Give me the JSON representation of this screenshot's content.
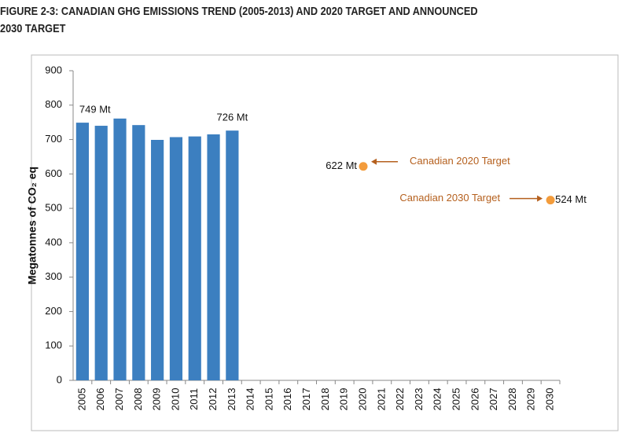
{
  "chart_data": {
    "type": "bar",
    "title": "FIGURE 2-3: CANADIAN GHG EMISSIONS TREND (2005-2013) AND 2020 TARGET AND ANNOUNCED 2030 TARGET",
    "y_label": "Megatonnes of CO₂ eq",
    "categories": [
      "2005",
      "2006",
      "2007",
      "2008",
      "2009",
      "2010",
      "2011",
      "2012",
      "2013",
      "2014",
      "2015",
      "2016",
      "2017",
      "2018",
      "2019",
      "2020",
      "2021",
      "2022",
      "2023",
      "2024",
      "2025",
      "2026",
      "2027",
      "2028",
      "2029",
      "2030"
    ],
    "series": [
      {
        "type": "bar",
        "color": "#3c7fc0",
        "values": [
          749,
          740,
          761,
          742,
          699,
          707,
          709,
          715,
          726,
          null,
          null,
          null,
          null,
          null,
          null,
          null,
          null,
          null,
          null,
          null,
          null,
          null,
          null,
          null,
          null,
          null
        ],
        "value_labels": [
          "749 Mt",
          null,
          null,
          null,
          null,
          null,
          null,
          null,
          "726 Mt",
          null,
          null,
          null,
          null,
          null,
          null,
          null,
          null,
          null,
          null,
          null,
          null,
          null,
          null,
          null,
          null,
          null
        ]
      },
      {
        "type": "scatter",
        "color": "#f39c3c",
        "values": [
          null,
          null,
          null,
          null,
          null,
          null,
          null,
          null,
          null,
          null,
          null,
          null,
          null,
          null,
          null,
          622,
          null,
          null,
          null,
          null,
          null,
          null,
          null,
          null,
          null,
          524
        ],
        "value_labels": [
          null,
          null,
          null,
          null,
          null,
          null,
          null,
          null,
          null,
          null,
          null,
          null,
          null,
          null,
          null,
          "622 Mt",
          null,
          null,
          null,
          null,
          null,
          null,
          null,
          null,
          null,
          "524 Mt"
        ]
      }
    ],
    "annotations": [
      "Canadian 2020 Target",
      "Canadian 2030 Target"
    ],
    "annotation_color": "#b5601e",
    "ylim": [
      0,
      900
    ],
    "yticks": [
      0,
      100,
      200,
      300,
      400,
      500,
      600,
      700,
      800,
      900
    ],
    "grid": false
  }
}
